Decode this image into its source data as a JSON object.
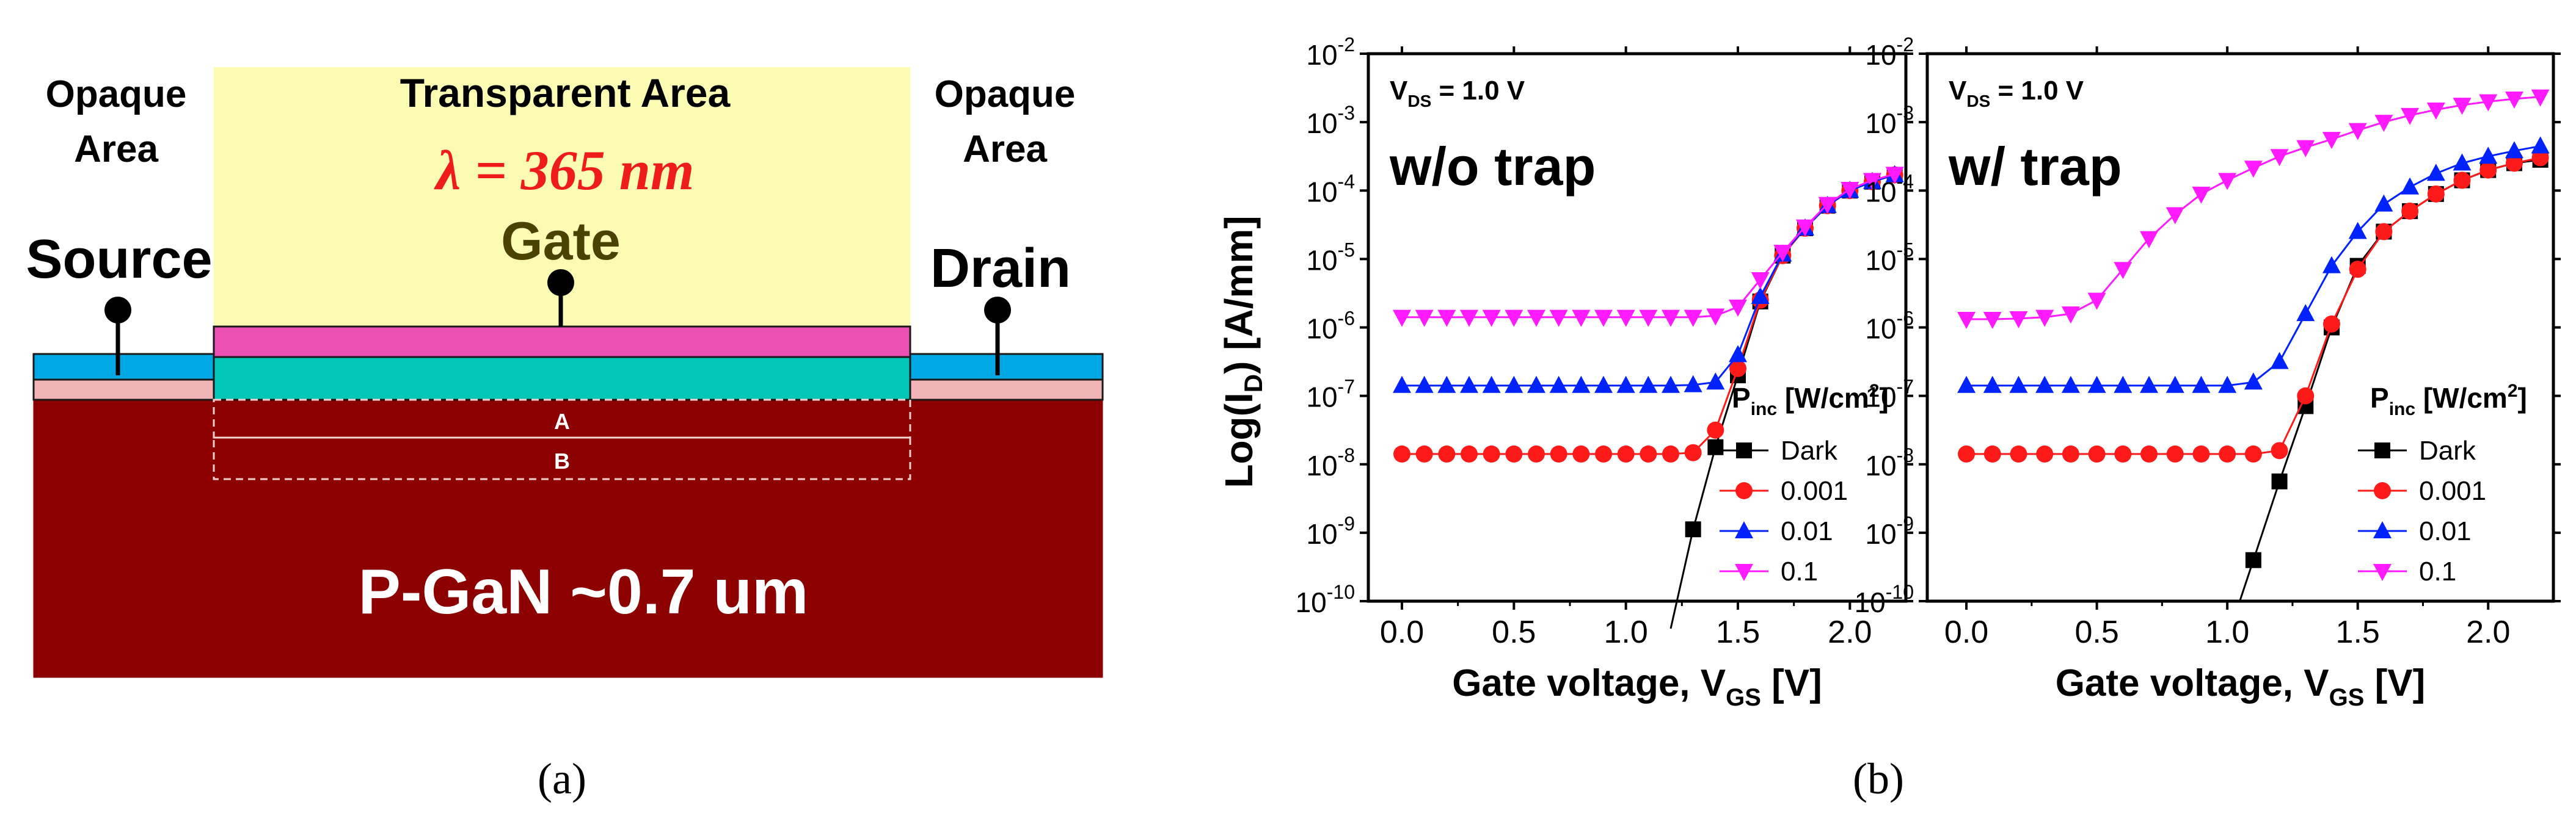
{
  "diagram": {
    "label": "(a)",
    "transparent_area": "Transparent Area",
    "opaque_left": [
      "Opaque",
      "Area"
    ],
    "opaque_right": [
      "Opaque",
      "Area"
    ],
    "wavelength": "λ = 365 nm",
    "gate": "Gate",
    "source": "Source",
    "drain": "Drain",
    "region_a": "A",
    "region_b": "B",
    "substrate": "P-GaN ~0.7 um",
    "colors": {
      "transparent": "#fbfbb4",
      "gate_metal": "#ec4fb5",
      "channel": "#00c7b8",
      "contact": "#00a9e6",
      "buffer": "#f2b5b5",
      "substrate": "#8d0000",
      "wavelength_text": "#ee1c1c",
      "gate_text": "#4a4200"
    }
  },
  "figure_label_b": "(b)",
  "chart_data": [
    {
      "type": "scatter",
      "id": "without-trap",
      "title": "w/o trap",
      "annotation": "V_DS = 1.0 V",
      "vds": {
        "v": "V",
        "sub": "DS",
        "rest": " =  1.0 V"
      },
      "xlabel": "Gate voltage, V_GS [V]",
      "xlabel_parts": {
        "pre": "Gate voltage, V",
        "sub": "GS",
        "post": " [V]"
      },
      "ylabel": "Log(I_D) [A/mm]",
      "ylabel_parts": {
        "pre": "Log(I",
        "sub": "D",
        "post": ") [A/mm]"
      },
      "xlim": [
        -0.15,
        2.25
      ],
      "xticks": [
        "0.0",
        "0.5",
        "1.0",
        "1.5",
        "2.0"
      ],
      "xtick_values": [
        0,
        0.5,
        1.0,
        1.5,
        2.0
      ],
      "ylim_log10": [
        -10,
        -2
      ],
      "yticks": [
        {
          "base": "10",
          "exp": "-10"
        },
        {
          "base": "10",
          "exp": "-9"
        },
        {
          "base": "10",
          "exp": "-8"
        },
        {
          "base": "10",
          "exp": "-7"
        },
        {
          "base": "10",
          "exp": "-6"
        },
        {
          "base": "10",
          "exp": "-5"
        },
        {
          "base": "10",
          "exp": "-4"
        },
        {
          "base": "10",
          "exp": "-3"
        },
        {
          "base": "10",
          "exp": "-2"
        }
      ],
      "legend_title": {
        "pre": "P",
        "sub": "inc",
        "post": " [W/cm",
        "sup": "2",
        "end": "]"
      },
      "legend_position": "center-right",
      "series": [
        {
          "name": "Dark",
          "color": "#000000",
          "marker": "square",
          "x": [
            1.2,
            1.3,
            1.4,
            1.5,
            1.6,
            1.7,
            1.8,
            1.9,
            2.0,
            2.1,
            2.2
          ],
          "log10_y": [
            -10.4,
            -8.95,
            -7.75,
            -6.7,
            -5.62,
            -4.95,
            -4.55,
            -4.22,
            -4.0,
            -3.87,
            -3.77
          ]
        },
        {
          "name": "0.001",
          "color": "#ff1a1a",
          "marker": "circle",
          "x": [
            0.0,
            0.1,
            0.2,
            0.3,
            0.4,
            0.5,
            0.6,
            0.7,
            0.8,
            0.9,
            1.0,
            1.1,
            1.2,
            1.3,
            1.4,
            1.5,
            1.6,
            1.7,
            1.8,
            1.9,
            2.0,
            2.1,
            2.2
          ],
          "log10_y": [
            -7.85,
            -7.85,
            -7.85,
            -7.85,
            -7.85,
            -7.85,
            -7.85,
            -7.85,
            -7.85,
            -7.85,
            -7.85,
            -7.85,
            -7.85,
            -7.83,
            -7.5,
            -6.6,
            -5.6,
            -4.95,
            -4.55,
            -4.22,
            -4.0,
            -3.87,
            -3.77
          ]
        },
        {
          "name": "0.01",
          "color": "#0022ff",
          "marker": "triangle-up",
          "x": [
            0.0,
            0.1,
            0.2,
            0.3,
            0.4,
            0.5,
            0.6,
            0.7,
            0.8,
            0.9,
            1.0,
            1.1,
            1.2,
            1.3,
            1.4,
            1.5,
            1.6,
            1.7,
            1.8,
            1.9,
            2.0,
            2.1,
            2.2
          ],
          "log10_y": [
            -6.85,
            -6.85,
            -6.85,
            -6.85,
            -6.85,
            -6.85,
            -6.85,
            -6.85,
            -6.85,
            -6.85,
            -6.85,
            -6.85,
            -6.85,
            -6.84,
            -6.8,
            -6.4,
            -5.55,
            -4.93,
            -4.55,
            -4.22,
            -4.0,
            -3.87,
            -3.77
          ]
        },
        {
          "name": "0.1",
          "color": "#ff1aff",
          "marker": "triangle-down",
          "x": [
            0.0,
            0.1,
            0.2,
            0.3,
            0.4,
            0.5,
            0.6,
            0.7,
            0.8,
            0.9,
            1.0,
            1.1,
            1.2,
            1.3,
            1.4,
            1.5,
            1.6,
            1.7,
            1.8,
            1.9,
            2.0,
            2.1,
            2.2
          ],
          "log10_y": [
            -5.85,
            -5.85,
            -5.85,
            -5.85,
            -5.85,
            -5.85,
            -5.85,
            -5.85,
            -5.85,
            -5.85,
            -5.85,
            -5.85,
            -5.85,
            -5.85,
            -5.83,
            -5.7,
            -5.3,
            -4.9,
            -4.53,
            -4.2,
            -3.98,
            -3.85,
            -3.76
          ]
        }
      ]
    },
    {
      "type": "scatter",
      "id": "with-trap",
      "title": "w/ trap",
      "annotation": "V_DS = 1.0 V",
      "vds": {
        "v": "V",
        "sub": "DS",
        "rest": " =  1.0 V"
      },
      "xlabel": "Gate voltage, V_GS [V]",
      "xlabel_parts": {
        "pre": "Gate voltage, V",
        "sub": "GS",
        "post": " [V]"
      },
      "ylabel": "",
      "xlim": [
        -0.15,
        2.25
      ],
      "xticks": [
        "0.0",
        "0.5",
        "1.0",
        "1.5",
        "2.0"
      ],
      "xtick_values": [
        0,
        0.5,
        1.0,
        1.5,
        2.0
      ],
      "ylim_log10": [
        -10,
        -2
      ],
      "yticks": [
        {
          "base": "10",
          "exp": "-10"
        },
        {
          "base": "10",
          "exp": "-9"
        },
        {
          "base": "10",
          "exp": "-8"
        },
        {
          "base": "10",
          "exp": "-7"
        },
        {
          "base": "10",
          "exp": "-6"
        },
        {
          "base": "10",
          "exp": "-5"
        },
        {
          "base": "10",
          "exp": "-4"
        },
        {
          "base": "10",
          "exp": "-3"
        },
        {
          "base": "10",
          "exp": "-2"
        }
      ],
      "legend_title": {
        "pre": "P",
        "sub": "inc",
        "post": " [W/cm",
        "sup": "2",
        "end": "]"
      },
      "legend_position": "center-right",
      "series": [
        {
          "name": "Dark",
          "color": "#000000",
          "marker": "square",
          "x": [
            1.1,
            1.2,
            1.3,
            1.4,
            1.5,
            1.6,
            1.7,
            1.8,
            1.9,
            2.0,
            2.1,
            2.2
          ],
          "log10_y": [
            -9.4,
            -8.25,
            -7.15,
            -6.0,
            -5.1,
            -4.6,
            -4.3,
            -4.05,
            -3.85,
            -3.7,
            -3.6,
            -3.55
          ]
        },
        {
          "name": "0.001",
          "color": "#ff1a1a",
          "marker": "circle",
          "x": [
            0.0,
            0.1,
            0.2,
            0.3,
            0.4,
            0.5,
            0.6,
            0.7,
            0.8,
            0.9,
            1.0,
            1.1,
            1.2,
            1.3,
            1.4,
            1.5,
            1.6,
            1.7,
            1.8,
            1.9,
            2.0,
            2.1,
            2.2
          ],
          "log10_y": [
            -7.85,
            -7.85,
            -7.85,
            -7.85,
            -7.85,
            -7.85,
            -7.85,
            -7.85,
            -7.85,
            -7.85,
            -7.85,
            -7.85,
            -7.8,
            -7.0,
            -5.95,
            -5.15,
            -4.6,
            -4.3,
            -4.05,
            -3.85,
            -3.7,
            -3.6,
            -3.52
          ]
        },
        {
          "name": "0.01",
          "color": "#0022ff",
          "marker": "triangle-up",
          "x": [
            0.0,
            0.1,
            0.2,
            0.3,
            0.4,
            0.5,
            0.6,
            0.7,
            0.8,
            0.9,
            1.0,
            1.1,
            1.2,
            1.3,
            1.4,
            1.5,
            1.6,
            1.7,
            1.8,
            1.9,
            2.0,
            2.1,
            2.2
          ],
          "log10_y": [
            -6.85,
            -6.85,
            -6.85,
            -6.85,
            -6.85,
            -6.85,
            -6.85,
            -6.85,
            -6.85,
            -6.85,
            -6.85,
            -6.8,
            -6.5,
            -5.8,
            -5.1,
            -4.6,
            -4.2,
            -3.95,
            -3.75,
            -3.6,
            -3.5,
            -3.42,
            -3.35
          ]
        },
        {
          "name": "0.1",
          "color": "#ff1aff",
          "marker": "triangle-down",
          "x": [
            0.0,
            0.1,
            0.2,
            0.3,
            0.4,
            0.5,
            0.6,
            0.7,
            0.8,
            0.9,
            1.0,
            1.1,
            1.2,
            1.3,
            1.4,
            1.5,
            1.6,
            1.7,
            1.8,
            1.9,
            2.0,
            2.1,
            2.2
          ],
          "log10_y": [
            -5.88,
            -5.88,
            -5.87,
            -5.85,
            -5.8,
            -5.6,
            -5.15,
            -4.7,
            -4.35,
            -4.05,
            -3.85,
            -3.67,
            -3.5,
            -3.37,
            -3.25,
            -3.12,
            -3.0,
            -2.9,
            -2.82,
            -2.75,
            -2.7,
            -2.66,
            -2.63
          ]
        }
      ]
    }
  ]
}
